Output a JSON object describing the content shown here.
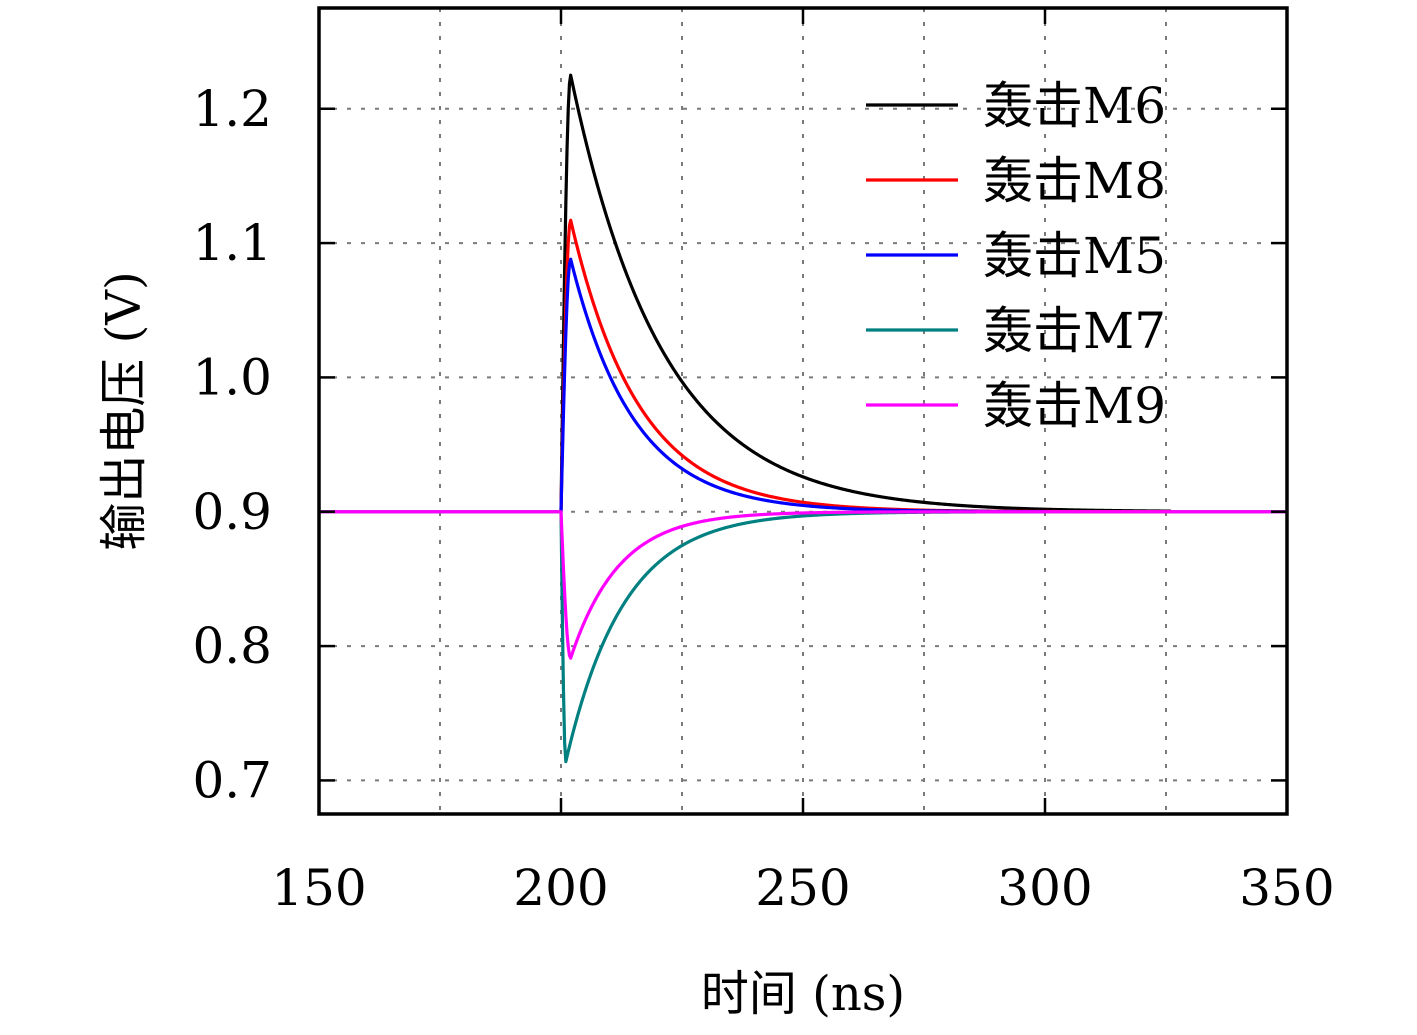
{
  "chart_data": {
    "type": "line",
    "title": "",
    "xlabel": "时间 (ns)",
    "ylabel": "输出电压 (V)",
    "xlim": [
      150,
      350
    ],
    "ylim": [
      0.675,
      1.275
    ],
    "xticks": [
      150,
      200,
      250,
      300,
      350
    ],
    "xtick_labels": [
      "150",
      "200",
      "250",
      "300",
      "350"
    ],
    "yticks": [
      0.7,
      0.8,
      0.9,
      1.0,
      1.1,
      1.2
    ],
    "ytick_labels": [
      "0.7",
      "0.8",
      "0.9",
      "1.0",
      "1.1",
      "1.2"
    ],
    "xgrid": [
      175,
      200,
      225,
      250,
      275,
      300,
      325
    ],
    "grid": true,
    "legend_position": "top-right",
    "baseline": 0.9,
    "series": [
      {
        "name": "轰击M6",
        "color": "#000000",
        "x_start": 200,
        "x_end": 326,
        "rise_time": 2,
        "peak": 1.225,
        "decay_tau": 19
      },
      {
        "name": "轰击M8",
        "color": "#ff0000",
        "x_start": 200,
        "x_end": 326,
        "rise_time": 2,
        "peak": 1.117,
        "decay_tau": 14
      },
      {
        "name": "轰击M5",
        "color": "#0000ff",
        "x_start": 200,
        "x_end": 300,
        "rise_time": 2,
        "peak": 1.088,
        "decay_tau": 13
      },
      {
        "name": "轰击M7",
        "color": "#008080",
        "x_start": 150,
        "x_end": 350,
        "rise_time": 1,
        "peak": 0.714,
        "decay_tau": 12
      },
      {
        "name": "轰击M9",
        "color": "#ff00ff",
        "x_start": 150,
        "x_end": 350,
        "rise_time": 2,
        "peak": 0.791,
        "decay_tau": 10
      }
    ]
  }
}
